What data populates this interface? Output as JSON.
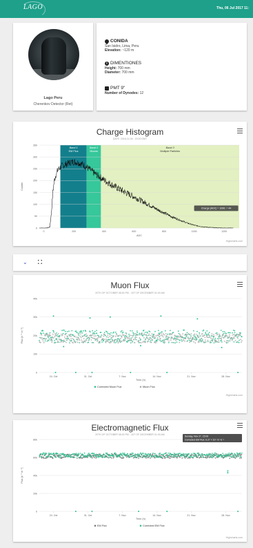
{
  "header": {
    "logo_text": "LAGO",
    "datetime": "Thu, 06 Jul 2017 11:"
  },
  "site": {
    "name": "Lago Peru",
    "detector": "Cherenkov Detector (Ret)"
  },
  "location": {
    "title": "CONIDA",
    "address": "San Isidro, Lima, Peru",
    "elevation_label": "Elevation:",
    "elevation_value": "~120 m"
  },
  "dimensions": {
    "title": "DIMENTIONES",
    "height_label": "Height:",
    "height_value": "700 mm",
    "diameter_label": "Diameter:",
    "diameter_value": "700 mm"
  },
  "pmt": {
    "title": "PMT 9\"",
    "dynodes_label": "Number of Dynodes:",
    "dynodes_value": "12"
  },
  "toolbar": {
    "collapse_icon": "chevron-down-icon",
    "fullscreen_icon": "fullscreen-icon",
    "chevron_glyph": "⌄"
  },
  "charge_histogram": {
    "title": "Charge Histogram",
    "subtitle": "DATE: 2016-11-06 - 20:00 GMT",
    "credits": "Highcharts.com",
    "bands": [
      {
        "label1": "Band 1",
        "label2": "EM Flux",
        "from": 110,
        "to": 285,
        "color": "#137f8c"
      },
      {
        "label1": "Band 2",
        "label2": "Muons",
        "from": 285,
        "to": 380,
        "color": "#36c79a"
      },
      {
        "label1": "Band 3",
        "label2": "Multiple Particles",
        "from": 380,
        "to": 1300,
        "color": "#e3f0c2"
      }
    ],
    "tooltip": "Charge [ADC] = 1090; = 44"
  },
  "muon_flux": {
    "title": "Muon Flux",
    "subtitle": "20TH OF OCTOBER 08:00 PM - 1ST OF DECEMBER 01:00 AM",
    "credits": "Highcharts.com",
    "legend": [
      "Corrected Muon Flux",
      "Muon Flux"
    ]
  },
  "em_flux": {
    "title": "Electromagnetic Flux",
    "subtitle": "20TH OF OCTOBER 08:00 PM - 1ST OF DECEMBER 01:00 AM",
    "credits": "Highcharts.com",
    "legend": [
      "EM Flux",
      "Corrected EM Flux"
    ],
    "tooltip_line1": "Sunday, Nov 27, 15:00",
    "tooltip_line2": "Corrected EM Flux: 6.27 × 10⁴ m⁻²s⁻¹"
  },
  "chart_data": [
    {
      "type": "line",
      "title": "Charge Histogram",
      "xlabel": "ADC",
      "ylabel": "Counts",
      "xlim": [
        -30,
        1300
      ],
      "ylim": [
        0,
        350
      ],
      "x_ticks": [
        "0",
        "200",
        "400",
        "600",
        "800",
        "1000",
        "1200"
      ],
      "y_ticks": [
        "0",
        "50",
        "100",
        "150",
        "200",
        "250",
        "300",
        "350"
      ],
      "x": [
        -30,
        20,
        40,
        50,
        60,
        70,
        80,
        90,
        100,
        120,
        150,
        180,
        200,
        230,
        260,
        300,
        340,
        380,
        420,
        460,
        500,
        550,
        600,
        650,
        700,
        750,
        800,
        850,
        900,
        950,
        1000,
        1050,
        1100,
        1150,
        1200,
        1250
      ],
      "y": [
        0,
        0,
        5,
        60,
        150,
        200,
        225,
        240,
        250,
        262,
        270,
        278,
        280,
        276,
        268,
        250,
        230,
        212,
        195,
        180,
        165,
        148,
        132,
        115,
        98,
        80,
        64,
        48,
        35,
        22,
        12,
        6,
        3,
        1,
        0,
        0
      ],
      "grid": true,
      "legend": "none"
    },
    {
      "type": "scatter",
      "title": "Muon Flux",
      "xlabel": "Time (h)",
      "ylabel": "Flux [s⁻¹ m⁻²]",
      "x_ticks": [
        "24. Oct",
        "31. Oct",
        "7. Nov",
        "14. Nov",
        "21. Nov",
        "28. Nov"
      ],
      "y_ticks": [
        "0",
        "10k",
        "20k",
        "30k",
        "40k"
      ],
      "ylim": [
        0,
        40000
      ],
      "series": [
        {
          "name": "Corrected Muon Flux",
          "color": "#2bbf8e",
          "band": [
            16000,
            23000
          ],
          "outliers": [
            [
              0.07,
              30500
            ],
            [
              0.25,
              29500
            ],
            [
              0.35,
              30000
            ],
            [
              0.6,
              30500
            ],
            [
              0.78,
              29000
            ],
            [
              0.12,
              14000
            ],
            [
              0.5,
              14500
            ],
            [
              0.9,
              13500
            ]
          ],
          "low_points": [
            [
              0.08,
              0
            ],
            [
              0.18,
              0
            ],
            [
              0.26,
              0
            ],
            [
              0.45,
              0
            ],
            [
              0.63,
              0
            ],
            [
              0.98,
              0
            ]
          ]
        },
        {
          "name": "Muon Flux",
          "color": "#aaaaaa",
          "band": [
            16000,
            21000
          ]
        }
      ],
      "legend": "bottom"
    },
    {
      "type": "scatter",
      "title": "Electromagnetic Flux",
      "xlabel": "Time (h)",
      "ylabel": "Flux [s⁻¹ m⁻²]",
      "x_ticks": [
        "24. Oct",
        "31. Oct",
        "7. Nov",
        "14. Nov",
        "21. Nov",
        "28. Nov"
      ],
      "y_ticks": [
        "0",
        "20k",
        "40k",
        "60k",
        "80k"
      ],
      "ylim": [
        0,
        80000
      ],
      "series": [
        {
          "name": "EM Flux",
          "color": "#777777",
          "band": [
            59000,
            64000
          ]
        },
        {
          "name": "Corrected EM Flux",
          "color": "#2bbf8e",
          "band": [
            60000,
            65000
          ],
          "outliers": [
            [
              0.93,
              45000
            ],
            [
              0.93,
              43000
            ]
          ],
          "low_points": [
            [
              0.18,
              0
            ],
            [
              0.26,
              0
            ],
            [
              0.49,
              0
            ],
            [
              0.63,
              0
            ],
            [
              0.98,
              0
            ]
          ]
        }
      ],
      "legend": "bottom"
    }
  ]
}
